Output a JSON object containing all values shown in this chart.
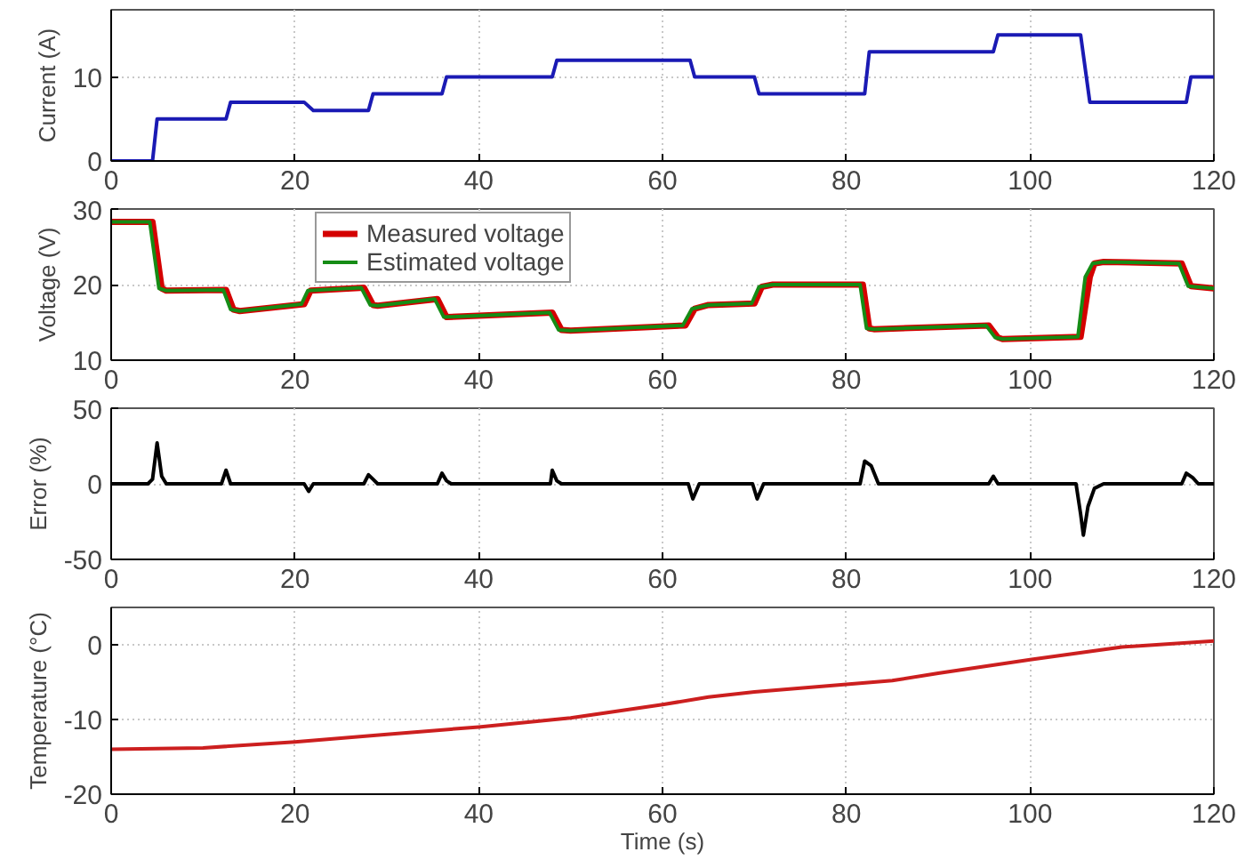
{
  "chart_data": [
    {
      "type": "line",
      "ylabel": "Current (A)",
      "xlim": [
        0,
        120
      ],
      "xticks": [
        0,
        20,
        40,
        60,
        80,
        100,
        120
      ],
      "ylim": [
        0,
        18
      ],
      "yticks": [
        0,
        10
      ],
      "grid": true,
      "legend": false,
      "series": [
        {
          "color": "#1a1ab4",
          "x": [
            0,
            4.5,
            5,
            12.5,
            13,
            21,
            22,
            28,
            28.5,
            36,
            36.5,
            48,
            48.5,
            63,
            63.5,
            70,
            70.5,
            82,
            82.5,
            96,
            96.5,
            105.5,
            106.5,
            117,
            117.5,
            120
          ],
          "values": [
            0,
            0,
            5,
            5,
            7,
            7,
            6,
            6,
            8,
            8,
            10,
            10,
            12,
            12,
            10,
            10,
            8,
            8,
            13,
            13,
            15,
            15,
            7,
            7,
            10,
            10
          ]
        }
      ]
    },
    {
      "type": "line",
      "ylabel": "Voltage (V)",
      "xlim": [
        0,
        120
      ],
      "xticks": [
        0,
        20,
        40,
        60,
        80,
        100,
        120
      ],
      "ylim": [
        10,
        30
      ],
      "yticks": [
        10,
        20,
        30
      ],
      "grid": true,
      "legend": "top",
      "series": [
        {
          "name": "Measured voltage",
          "color": "#d40000",
          "x": [
            0,
            4.5,
            5.5,
            6,
            12.5,
            13.3,
            14,
            21,
            21.7,
            27.5,
            28.5,
            29,
            35.5,
            36.5,
            48,
            49,
            50,
            62.5,
            63.5,
            65,
            70,
            70.8,
            72,
            81.8,
            82.5,
            83,
            95.5,
            96.5,
            97,
            105.5,
            106.5,
            107,
            108,
            116.5,
            117.5,
            120
          ],
          "values": [
            28.3,
            28.3,
            19.5,
            19.2,
            19.3,
            16.7,
            16.5,
            17.4,
            19.2,
            19.6,
            17.3,
            17.2,
            18.1,
            15.7,
            16.3,
            14,
            13.9,
            14.6,
            16.8,
            17.3,
            17.5,
            19.7,
            20,
            20,
            14.2,
            14.1,
            14.6,
            13,
            12.8,
            13.1,
            21,
            22.8,
            23,
            22.8,
            19.8,
            19.5
          ]
        },
        {
          "name": "Estimated voltage",
          "color": "#158c15",
          "x": [
            0,
            4.2,
            5.2,
            6,
            12.2,
            13,
            14,
            20.7,
            21.4,
            27.2,
            28.2,
            29,
            35.2,
            36.2,
            47.7,
            48.7,
            50,
            62.2,
            63.2,
            65,
            69.7,
            70.5,
            72,
            81.5,
            82.2,
            83,
            95.2,
            96.2,
            97,
            105.2,
            106,
            106.8,
            108,
            116.2,
            117.2,
            120
          ],
          "values": [
            28.3,
            28.3,
            19.5,
            19.2,
            19.3,
            16.7,
            16.5,
            17.4,
            19.2,
            19.6,
            17.3,
            17.2,
            18.1,
            15.7,
            16.3,
            14,
            13.9,
            14.6,
            16.8,
            17.3,
            17.5,
            19.7,
            20,
            20,
            14.2,
            14.1,
            14.6,
            13,
            12.8,
            13.1,
            21,
            22.8,
            23,
            22.8,
            19.8,
            19.5
          ]
        }
      ]
    },
    {
      "type": "line",
      "ylabel": "Error (%)",
      "xlim": [
        0,
        120
      ],
      "xticks": [
        0,
        20,
        40,
        60,
        80,
        100,
        120
      ],
      "ylim": [
        -50,
        50
      ],
      "yticks": [
        -50,
        0,
        50
      ],
      "grid": true,
      "legend": false,
      "series": [
        {
          "color": "#000000",
          "x": [
            0,
            4,
            4.5,
            5,
            5.5,
            6,
            12,
            12.5,
            13,
            21,
            21.5,
            22,
            27.5,
            28,
            28.5,
            29,
            35.5,
            36,
            36.5,
            37,
            47.8,
            48,
            48.5,
            49,
            62.8,
            63.3,
            64,
            69.8,
            70.3,
            71,
            81.5,
            82,
            82.7,
            83.5,
            95.5,
            96,
            96.5,
            105,
            105.5,
            105.8,
            106.3,
            107,
            108,
            116.5,
            117,
            117.7,
            118.3,
            120
          ],
          "values": [
            0,
            0,
            3,
            27,
            5,
            0,
            0,
            9,
            0,
            0,
            -5,
            0,
            0,
            6,
            3,
            0,
            0,
            7,
            2,
            0,
            0,
            9,
            2,
            0,
            0,
            -10,
            0,
            0,
            -10,
            0,
            0,
            15,
            12,
            0,
            0,
            5,
            0,
            0,
            -20,
            -34,
            -15,
            -3,
            0,
            0,
            7,
            4,
            0,
            0
          ]
        }
      ]
    },
    {
      "type": "line",
      "ylabel": "Temperature (°C)",
      "xlabel": "Time (s)",
      "xlim": [
        0,
        120
      ],
      "xticks": [
        0,
        20,
        40,
        60,
        80,
        100,
        120
      ],
      "ylim": [
        -20,
        5
      ],
      "yticks": [
        -20,
        -10,
        0
      ],
      "grid": true,
      "legend": false,
      "series": [
        {
          "color": "#cc1f1f",
          "x": [
            0,
            10,
            20,
            30,
            40,
            50,
            60,
            65,
            70,
            80,
            85,
            90,
            100,
            110,
            120
          ],
          "values": [
            -14,
            -13.8,
            -13,
            -12,
            -11,
            -9.8,
            -8,
            -7,
            -6.3,
            -5.3,
            -4.8,
            -3.8,
            -2,
            -0.3,
            0.5
          ]
        }
      ]
    }
  ]
}
